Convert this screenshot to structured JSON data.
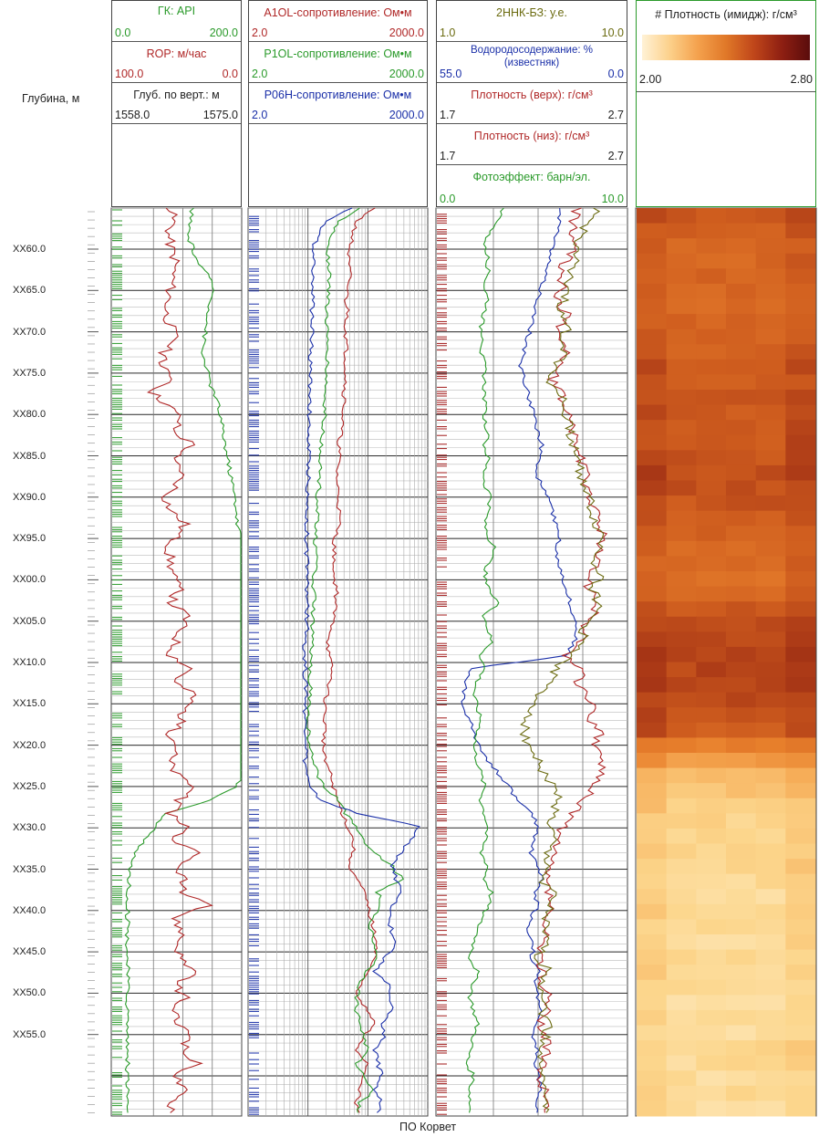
{
  "depth_axis": {
    "title": "Глубина, м",
    "ticks": [
      "XX60.0",
      "XX65.0",
      "XX70.0",
      "XX75.0",
      "XX80.0",
      "XX85.0",
      "XX90.0",
      "XX95.0",
      "XX00.0",
      "XX05.0",
      "XX10.0",
      "XX15.0",
      "XX20.0",
      "XX25.0",
      "XX30.0",
      "XX35.0",
      "XX40.0",
      "XX45.0",
      "XX50.0",
      "XX55.0"
    ]
  },
  "footer": "ПО Корвет",
  "colors": {
    "green": "#2a9a2a",
    "red": "#b02828",
    "blue": "#1a2fa8",
    "olive": "#6b6b10",
    "ink": "#222222"
  },
  "track1": {
    "headers": [
      {
        "title": "ГК: API",
        "min": "0.0",
        "max": "200.0",
        "color": "#2a9a2a"
      },
      {
        "title": "ROP: м/час",
        "min": "100.0",
        "max": "0.0",
        "color": "#b02828"
      },
      {
        "title": "Глуб. по верт.: м",
        "min": "1558.0",
        "max": "1575.0",
        "color": "#222222"
      }
    ]
  },
  "track2": {
    "headers": [
      {
        "title": "A1OL-сопротивление: Ом•м",
        "min": "2.0",
        "max": "2000.0",
        "color": "#b02828"
      },
      {
        "title": "P1OL-сопротивление: Ом•м",
        "min": "2.0",
        "max": "2000.0",
        "color": "#2a9a2a"
      },
      {
        "title": "P06H-сопротивление: Ом•м",
        "min": "2.0",
        "max": "2000.0",
        "color": "#1a2fa8"
      }
    ]
  },
  "track3": {
    "headers": [
      {
        "title": "2ННК-БЗ: у.е.",
        "min": "1.0",
        "max": "10.0",
        "color": "#6b6b10"
      },
      {
        "title": "Водородосодержание: %",
        "subtitle": "(известняк)",
        "min": "55.0",
        "max": "0.0",
        "color": "#1a2fa8"
      },
      {
        "title": "Плотность (верх): г/см³",
        "min": "1.7",
        "max": "2.7",
        "color": "#b02828"
      },
      {
        "title": "Плотность (низ): г/см³",
        "min": "1.7",
        "max": "2.7",
        "color": "#b02828"
      },
      {
        "title": "Фотоэффект: барн/эл.",
        "min": "0.0",
        "max": "10.0",
        "color": "#2a9a2a"
      }
    ]
  },
  "track4": {
    "header": {
      "title": "# Плотность (имидж): г/см³",
      "min": "2.00",
      "max": "2.80"
    }
  },
  "chart_data": {
    "type": "line",
    "depth_labels": [
      "XX60.0",
      "XX65.0",
      "XX70.0",
      "XX75.0",
      "XX80.0",
      "XX85.0",
      "XX90.0",
      "XX95.0",
      "XX00.0",
      "XX05.0",
      "XX10.0",
      "XX15.0",
      "XX20.0",
      "XX25.0",
      "XX30.0",
      "XX35.0",
      "XX40.0",
      "XX45.0",
      "XX50.0",
      "XX55.0"
    ],
    "series": [
      {
        "name": "ГК",
        "track": 1,
        "color": "#2a9a2a",
        "values": [
          58,
          56,
          54,
          58,
          62,
          70,
          76,
          74,
          72,
          70,
          68,
          66,
          70,
          72,
          76,
          80,
          82,
          84,
          86,
          88,
          90,
          92,
          94,
          96,
          96,
          100,
          106,
          112,
          114,
          118,
          116,
          118,
          120,
          116,
          118,
          120,
          114,
          112,
          116,
          116,
          118,
          110,
          106,
          104,
          94,
          74,
          36,
          26,
          18,
          10,
          6,
          4,
          4,
          3,
          3,
          3,
          3,
          3,
          3,
          3,
          3,
          3,
          3,
          3,
          3,
          3,
          3,
          3,
          3,
          3
        ]
      },
      {
        "name": "ROP",
        "track": 1,
        "color": "#b02828",
        "values": [
          40,
          42,
          38,
          40,
          44,
          42,
          40,
          38,
          36,
          40,
          44,
          34,
          30,
          44,
          24,
          38,
          48,
          42,
          60,
          40,
          50,
          46,
          36,
          40,
          52,
          44,
          38,
          40,
          42,
          46,
          40,
          54,
          48,
          44,
          40,
          58,
          42,
          60,
          52,
          48,
          40,
          46,
          38,
          44,
          60,
          46,
          40,
          54,
          42,
          60,
          46,
          50,
          48,
          70,
          42,
          50,
          46,
          48,
          60,
          44,
          52,
          40,
          46,
          58,
          48,
          62,
          44,
          50,
          40,
          44
        ]
      },
      {
        "name": "A1OL",
        "track": 2,
        "color": "#b02828",
        "values": [
          70,
          60,
          58,
          56,
          55,
          56,
          55,
          54,
          55,
          54,
          54,
          54,
          54,
          54,
          53,
          53,
          52,
          51,
          50,
          50,
          49,
          49,
          50,
          50,
          50,
          48,
          47,
          48,
          47,
          49,
          48,
          47,
          46,
          44,
          44,
          46,
          45,
          43,
          42,
          42,
          42,
          41,
          43,
          45,
          47,
          49,
          52,
          55,
          58,
          58,
          56,
          60,
          64,
          66,
          68,
          70,
          72,
          70,
          66,
          62,
          60,
          66,
          70,
          63,
          60,
          66,
          64,
          62,
          60,
          62
        ]
      },
      {
        "name": "P1OL",
        "track": 2,
        "color": "#2a9a2a",
        "values": [
          62,
          50,
          46,
          44,
          44,
          45,
          44,
          44,
          43,
          43,
          43,
          44,
          43,
          43,
          42,
          42,
          42,
          41,
          40,
          40,
          39,
          39,
          38,
          38,
          38,
          37,
          37,
          37,
          36,
          36,
          36,
          35,
          35,
          35,
          34,
          34,
          34,
          34,
          33,
          32,
          33,
          34,
          35,
          38,
          42,
          50,
          54,
          60,
          64,
          70,
          80,
          86,
          72,
          74,
          68,
          68,
          70,
          72,
          66,
          62,
          60,
          60,
          62,
          64,
          66,
          60,
          64,
          70,
          62,
          60
        ]
      },
      {
        "name": "P06H",
        "track": 2,
        "color": "#1a2fa8",
        "values": [
          58,
          42,
          38,
          36,
          36,
          36,
          35,
          35,
          35,
          35,
          35,
          34,
          34,
          34,
          34,
          34,
          33,
          33,
          33,
          33,
          33,
          33,
          32,
          32,
          32,
          32,
          32,
          32,
          32,
          32,
          32,
          32,
          32,
          31,
          31,
          31,
          31,
          32,
          31,
          31,
          32,
          32,
          31,
          32,
          33,
          40,
          60,
          96,
          90,
          85,
          80,
          82,
          86,
          80,
          78,
          80,
          82,
          76,
          70,
          78,
          78,
          80,
          74,
          76,
          70,
          72,
          74,
          70,
          74,
          72
        ]
      },
      {
        "name": "Водородосодержание",
        "track": 3,
        "color": "#1a2fa8",
        "values": [
          62,
          62,
          60,
          58,
          56,
          54,
          52,
          50,
          48,
          46,
          44,
          42,
          40,
          42,
          44,
          46,
          48,
          50,
          52,
          50,
          48,
          52,
          56,
          58,
          60,
          62,
          60,
          62,
          64,
          66,
          68,
          70,
          72,
          70,
          66,
          12,
          10,
          8,
          8,
          12,
          14,
          18,
          22,
          28,
          34,
          38,
          46,
          50,
          48,
          46,
          50,
          52,
          48,
          50,
          46,
          44,
          48,
          46,
          50,
          48,
          50,
          52,
          48,
          46,
          50,
          48,
          50,
          52,
          48,
          50
        ]
      },
      {
        "name": "Плотность (верх)",
        "track": 3,
        "color": "#b02828",
        "values": [
          72,
          70,
          68,
          70,
          66,
          62,
          64,
          60,
          66,
          62,
          64,
          66,
          62,
          58,
          62,
          66,
          68,
          70,
          72,
          74,
          76,
          78,
          80,
          82,
          84,
          86,
          84,
          82,
          80,
          78,
          84,
          80,
          76,
          74,
          64,
          76,
          72,
          78,
          80,
          80,
          84,
          82,
          86,
          84,
          80,
          76,
          70,
          64,
          60,
          58,
          56,
          54,
          56,
          58,
          52,
          54,
          52,
          50,
          54,
          52,
          56,
          54,
          52,
          54,
          56,
          52,
          50,
          54,
          56,
          52
        ]
      },
      {
        "name": "Плотность (низ)",
        "track": 3,
        "color": "#6b6b10",
        "values": [
          84,
          78,
          74,
          72,
          70,
          66,
          68,
          64,
          62,
          66,
          64,
          66,
          60,
          56,
          62,
          64,
          66,
          68,
          70,
          72,
          74,
          76,
          78,
          80,
          82,
          86,
          84,
          82,
          86,
          80,
          84,
          80,
          76,
          74,
          70,
          60,
          56,
          50,
          48,
          44,
          42,
          46,
          50,
          54,
          58,
          62,
          58,
          56,
          58,
          54,
          56,
          52,
          58,
          56,
          54,
          52,
          54,
          50,
          56,
          52,
          54,
          52,
          56,
          54,
          52,
          50,
          56,
          52,
          54,
          52
        ]
      },
      {
        "name": "Фотоэффект",
        "track": 3,
        "color": "#2a9a2a",
        "values": [
          30,
          28,
          22,
          20,
          22,
          22,
          20,
          22,
          20,
          18,
          20,
          18,
          20,
          20,
          20,
          20,
          20,
          22,
          20,
          22,
          20,
          20,
          24,
          22,
          20,
          22,
          26,
          22,
          20,
          22,
          28,
          20,
          22,
          24,
          18,
          20,
          16,
          14,
          16,
          18,
          16,
          14,
          16,
          18,
          20,
          18,
          20,
          22,
          20,
          18,
          22,
          20,
          24,
          22,
          18,
          16,
          14,
          12,
          16,
          14,
          12,
          14,
          16,
          14,
          12,
          10,
          14,
          12,
          12,
          12
        ]
      },
      {
        "name": "Плотность (имидж)",
        "track": 4,
        "values": [
          2.62,
          2.58,
          2.56,
          2.55,
          2.56,
          2.55,
          2.54,
          2.56,
          2.57,
          2.58,
          2.6,
          2.59,
          2.6,
          2.61,
          2.6,
          2.61,
          2.62,
          2.64,
          2.63,
          2.62,
          2.6,
          2.58,
          2.55,
          2.54,
          2.52,
          2.56,
          2.6,
          2.63,
          2.64,
          2.65,
          2.66,
          2.65,
          2.64,
          2.63,
          2.6,
          2.45,
          2.35,
          2.25,
          2.22,
          2.18,
          2.16,
          2.15,
          2.14,
          2.15,
          2.13,
          2.12,
          2.14,
          2.13,
          2.12,
          2.13,
          2.14,
          2.12,
          2.11,
          2.13,
          2.12,
          2.14,
          2.13,
          2.12,
          2.13,
          2.12
        ]
      }
    ]
  }
}
